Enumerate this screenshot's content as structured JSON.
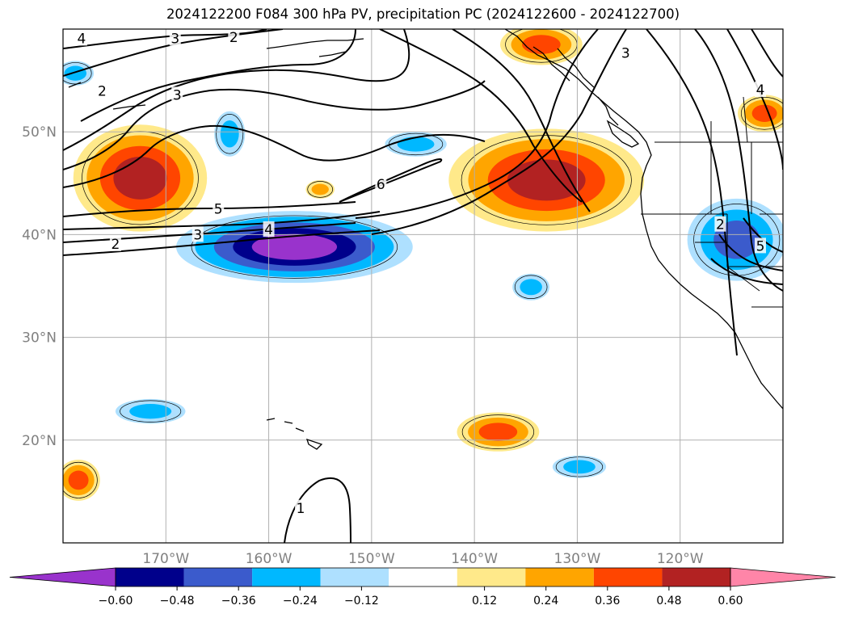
{
  "chart_data": {
    "type": "map",
    "title": "2024122200 F084 300 hPa PV, precipitation PC (2024122600 - 2024122700)",
    "region": {
      "lon_min": -180,
      "lon_max": -110,
      "lat_min": 10,
      "lat_max": 60
    },
    "lat_ticks": [
      {
        "value": 50,
        "label": "50°N"
      },
      {
        "value": 40,
        "label": "40°N"
      },
      {
        "value": 30,
        "label": "30°N"
      },
      {
        "value": 20,
        "label": "20°N"
      }
    ],
    "lon_ticks": [
      {
        "value": -170,
        "label": "170°W"
      },
      {
        "value": -160,
        "label": "160°W"
      },
      {
        "value": -150,
        "label": "150°W"
      },
      {
        "value": -140,
        "label": "140°W"
      },
      {
        "value": -130,
        "label": "130°W"
      },
      {
        "value": -120,
        "label": "120°W"
      }
    ],
    "grid": true,
    "colorbar": {
      "orientation": "horizontal",
      "extend": "both",
      "levels": [
        -0.72,
        -0.6,
        -0.48,
        -0.36,
        -0.24,
        -0.12,
        0.12,
        0.24,
        0.36,
        0.48,
        0.6,
        0.72
      ],
      "colors": [
        "#9933cc",
        "#00008b",
        "#3b5bcc",
        "#00b8ff",
        "#aee0ff",
        "#ffffff",
        "#ffe98a",
        "#ffa500",
        "#ff4500",
        "#b22222",
        "#ff85a8"
      ],
      "tick_labels": [
        "−0.60",
        "−0.48",
        "−0.36",
        "−0.24",
        "−0.12",
        "0.12",
        "0.24",
        "0.36",
        "0.48",
        "0.60"
      ]
    },
    "pv_contour_labels": [
      {
        "text": "4",
        "lon": -178.2,
        "lat": 59.1
      },
      {
        "text": "3",
        "lon": -169.1,
        "lat": 59.1
      },
      {
        "text": "2",
        "lon": -163.4,
        "lat": 59.2
      },
      {
        "text": "2",
        "lon": -176.2,
        "lat": 54.0
      },
      {
        "text": "3",
        "lon": -168.9,
        "lat": 53.6
      },
      {
        "text": "6",
        "lon": -149.1,
        "lat": 44.9
      },
      {
        "text": "5",
        "lon": -164.9,
        "lat": 42.5
      },
      {
        "text": "4",
        "lon": -160.0,
        "lat": 40.5
      },
      {
        "text": "3",
        "lon": -166.9,
        "lat": 40.0
      },
      {
        "text": "2",
        "lon": -174.9,
        "lat": 39.1
      },
      {
        "text": "3",
        "lon": -125.3,
        "lat": 57.7
      },
      {
        "text": "4",
        "lon": -112.2,
        "lat": 54.1
      },
      {
        "text": "2",
        "lon": -116.1,
        "lat": 41.0
      },
      {
        "text": "5",
        "lon": -112.2,
        "lat": 38.9
      },
      {
        "text": "1",
        "lon": -156.9,
        "lat": 13.4
      }
    ],
    "precip_anomalies": [
      {
        "sign": "positive",
        "peak": 0.5,
        "center_lon": -172.5,
        "center_lat": 45.5,
        "rx_deg": 6.5,
        "ry_deg": 5.2
      },
      {
        "sign": "positive",
        "peak": 0.5,
        "center_lon": -133.0,
        "center_lat": 45.3,
        "rx_deg": 9.5,
        "ry_deg": 5.0
      },
      {
        "sign": "positive",
        "peak": 0.36,
        "center_lon": -133.5,
        "center_lat": 58.5,
        "rx_deg": 4.0,
        "ry_deg": 2.0
      },
      {
        "sign": "positive",
        "peak": 0.4,
        "center_lon": -111.8,
        "center_lat": 51.8,
        "rx_deg": 2.6,
        "ry_deg": 1.8
      },
      {
        "sign": "positive",
        "peak": 0.3,
        "center_lon": -155.0,
        "center_lat": 44.4,
        "rx_deg": 1.4,
        "ry_deg": 0.9
      },
      {
        "sign": "positive",
        "peak": 0.36,
        "center_lon": -137.7,
        "center_lat": 20.8,
        "rx_deg": 4.0,
        "ry_deg": 1.9
      },
      {
        "sign": "positive",
        "peak": 0.4,
        "center_lon": -178.5,
        "center_lat": 16.1,
        "rx_deg": 2.1,
        "ry_deg": 2.0
      },
      {
        "sign": "negative",
        "peak": -0.7,
        "center_lon": -157.5,
        "center_lat": 38.8,
        "rx_deg": 11.5,
        "ry_deg": 3.5
      },
      {
        "sign": "negative",
        "peak": -0.4,
        "center_lon": -114.5,
        "center_lat": 39.5,
        "rx_deg": 4.8,
        "ry_deg": 4.0
      },
      {
        "sign": "negative",
        "peak": -0.3,
        "center_lon": -145.7,
        "center_lat": 48.8,
        "rx_deg": 3.0,
        "ry_deg": 1.2
      },
      {
        "sign": "negative",
        "peak": -0.3,
        "center_lon": -163.8,
        "center_lat": 49.8,
        "rx_deg": 1.5,
        "ry_deg": 2.2
      },
      {
        "sign": "negative",
        "peak": -0.35,
        "center_lon": -171.5,
        "center_lat": 22.8,
        "rx_deg": 3.4,
        "ry_deg": 1.2
      },
      {
        "sign": "negative",
        "peak": -0.3,
        "center_lon": -134.5,
        "center_lat": 34.9,
        "rx_deg": 1.8,
        "ry_deg": 1.3
      },
      {
        "sign": "negative",
        "peak": -0.3,
        "center_lon": -129.8,
        "center_lat": 17.4,
        "rx_deg": 2.6,
        "ry_deg": 1.1
      },
      {
        "sign": "negative",
        "peak": -0.3,
        "center_lon": -178.8,
        "center_lat": 55.7,
        "rx_deg": 1.8,
        "ry_deg": 1.2
      }
    ]
  }
}
